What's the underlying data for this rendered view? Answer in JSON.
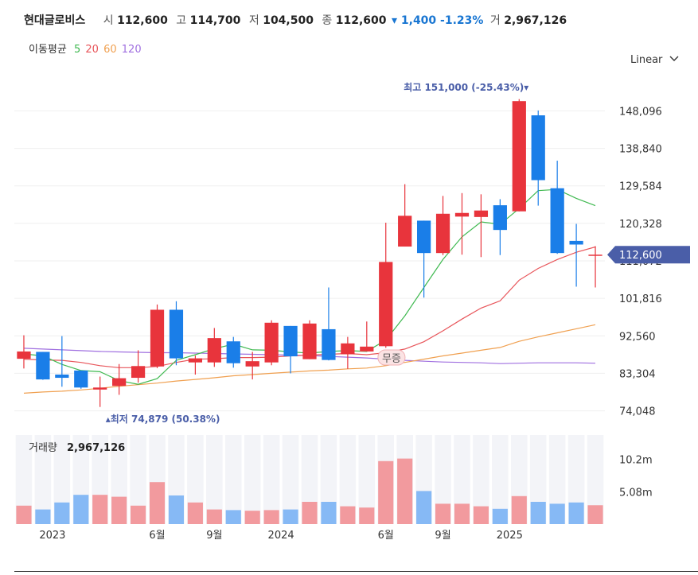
{
  "header": {
    "name": "현대글로비스",
    "open_label": "시",
    "open": "112,600",
    "high_label": "고",
    "high": "114,700",
    "low_label": "저",
    "low": "104,500",
    "close_label": "종",
    "close": "112,600",
    "change": "▾ 1,400 -1.23%",
    "volume_label": "거",
    "volume": "2,967,126"
  },
  "moving_average": {
    "label": "이동평균",
    "periods": [
      "5",
      "20",
      "60",
      "120"
    ],
    "colors": [
      "#3fb950",
      "#e8555a",
      "#f0a050",
      "#a070e0"
    ]
  },
  "scale_selector": {
    "label": "Linear",
    "icon": "chevron-down-icon"
  },
  "colors": {
    "up": "#e8343c",
    "down": "#1a7ee8",
    "accent": "#4a5ea8"
  },
  "chart_data": {
    "type": "candlestick",
    "x_ticks": [
      {
        "label": "2023",
        "index": 1.5
      },
      {
        "label": "6월",
        "index": 7
      },
      {
        "label": "9월",
        "index": 10
      },
      {
        "label": "2024",
        "index": 13.5
      },
      {
        "label": "6월",
        "index": 19
      },
      {
        "label": "9월",
        "index": 22
      },
      {
        "label": "2025",
        "index": 25.5
      }
    ],
    "y_ticks": [
      74048,
      83304,
      92560,
      101816,
      111072,
      120328,
      129584,
      138840,
      148096
    ],
    "y_tick_labels": [
      "74,048",
      "83,304",
      "92,560",
      "101,816",
      "111,072",
      "120,328",
      "129,584",
      "138,840",
      "148,096"
    ],
    "ylim": [
      72000,
      152500
    ],
    "candles": [
      {
        "o": 86900,
        "h": 92700,
        "l": 84500,
        "c": 88700
      },
      {
        "o": 88600,
        "h": 88600,
        "l": 81700,
        "c": 81800
      },
      {
        "o": 83000,
        "h": 92500,
        "l": 80000,
        "c": 82200
      },
      {
        "o": 84000,
        "h": 84000,
        "l": 79500,
        "c": 79800
      },
      {
        "o": 79300,
        "h": 82500,
        "l": 75000,
        "c": 79800
      },
      {
        "o": 80200,
        "h": 85600,
        "l": 78000,
        "c": 82100
      },
      {
        "o": 82200,
        "h": 89000,
        "l": 81000,
        "c": 85100
      },
      {
        "o": 85000,
        "h": 100300,
        "l": 84600,
        "c": 99000
      },
      {
        "o": 99000,
        "h": 101100,
        "l": 85300,
        "c": 87000
      },
      {
        "o": 86000,
        "h": 87700,
        "l": 83000,
        "c": 87000
      },
      {
        "o": 86000,
        "h": 94500,
        "l": 84900,
        "c": 92000
      },
      {
        "o": 91200,
        "h": 92300,
        "l": 84700,
        "c": 85800
      },
      {
        "o": 85000,
        "h": 88600,
        "l": 81800,
        "c": 86300
      },
      {
        "o": 86000,
        "h": 96400,
        "l": 85300,
        "c": 95800
      },
      {
        "o": 95000,
        "h": 95000,
        "l": 83300,
        "c": 87500
      },
      {
        "o": 86800,
        "h": 96400,
        "l": 86800,
        "c": 95600
      },
      {
        "o": 94200,
        "h": 104500,
        "l": 86500,
        "c": 86600
      },
      {
        "o": 88000,
        "h": 92300,
        "l": 84400,
        "c": 90700
      },
      {
        "o": 88700,
        "h": 96100,
        "l": 88700,
        "c": 89900
      },
      {
        "o": 90000,
        "h": 120500,
        "l": 89600,
        "c": 110800
      },
      {
        "o": 114600,
        "h": 130000,
        "l": 114600,
        "c": 122200
      },
      {
        "o": 121000,
        "h": 121000,
        "l": 102000,
        "c": 113000
      },
      {
        "o": 113000,
        "h": 127100,
        "l": 112500,
        "c": 122700
      },
      {
        "o": 122000,
        "h": 127800,
        "l": 112600,
        "c": 122900
      },
      {
        "o": 121900,
        "h": 127500,
        "l": 112000,
        "c": 123500
      },
      {
        "o": 124800,
        "h": 126300,
        "l": 112500,
        "c": 118700
      },
      {
        "o": 123300,
        "h": 151000,
        "l": 123300,
        "c": 150500
      },
      {
        "o": 147000,
        "h": 148200,
        "l": 124700,
        "c": 131000
      },
      {
        "o": 129000,
        "h": 135800,
        "l": 112800,
        "c": 113000
      },
      {
        "o": 116000,
        "h": 120200,
        "l": 104700,
        "c": 115100
      },
      {
        "o": 112600,
        "h": 114700,
        "l": 104500,
        "c": 112600
      }
    ],
    "ma5": [
      88100,
      87600,
      85500,
      84000,
      83700,
      81500,
      80600,
      82000,
      86500,
      87900,
      89400,
      90500,
      89100,
      89000,
      88600,
      88300,
      88700,
      88900,
      88700,
      91500,
      97500,
      104500,
      111400,
      117000,
      120700,
      120100,
      124000,
      128400,
      128700,
      126500,
      124700
    ],
    "ma20": [
      86800,
      86600,
      86500,
      86000,
      85200,
      84700,
      84700,
      85000,
      86000,
      86800,
      86900,
      87200,
      87200,
      87300,
      87600,
      87800,
      88000,
      88200,
      87900,
      88400,
      89300,
      91100,
      93800,
      96700,
      99400,
      101200,
      106300,
      109200,
      111400,
      113200,
      114500
    ],
    "ma60": [
      78400,
      78700,
      78900,
      79200,
      79600,
      80100,
      80500,
      80900,
      81400,
      81800,
      82200,
      82700,
      83000,
      83300,
      83600,
      83900,
      84100,
      84400,
      84600,
      85200,
      86000,
      86800,
      87600,
      88300,
      89000,
      89700,
      91200,
      92300,
      93300,
      94300,
      95300
    ],
    "ma120": [
      89500,
      89300,
      89100,
      88900,
      88700,
      88600,
      88500,
      88400,
      88400,
      88300,
      88200,
      88100,
      88000,
      87900,
      87800,
      87700,
      87500,
      87300,
      87100,
      86800,
      86500,
      86300,
      86100,
      86000,
      85900,
      85700,
      85800,
      85900,
      85900,
      85900,
      85800
    ],
    "high_annotation": {
      "text": "최고 151,000 (-25.43%)▾",
      "index": 26.5
    },
    "low_annotation": {
      "text": "▴최저 74,879 (50.38%)",
      "index": 6.8
    },
    "last_price_label": "112,600",
    "event_label": "무증",
    "volume_title": "거래량",
    "volume_value": "2,967,126",
    "volume_ticks": [
      {
        "label": "5.08m",
        "value": 5080000
      },
      {
        "label": "10.2m",
        "value": 10200000
      }
    ],
    "volume_ylim": [
      0,
      14000000
    ],
    "volumes": [
      2900000,
      2300000,
      3400000,
      4600000,
      4600000,
      4300000,
      2900000,
      6600000,
      4500000,
      3400000,
      2300000,
      2200000,
      2100000,
      2200000,
      2300000,
      3500000,
      3500000,
      2800000,
      2600000,
      9900000,
      10300000,
      5200000,
      3200000,
      3200000,
      2800000,
      2400000,
      4400000,
      3500000,
      3200000,
      3400000,
      2967126
    ]
  }
}
